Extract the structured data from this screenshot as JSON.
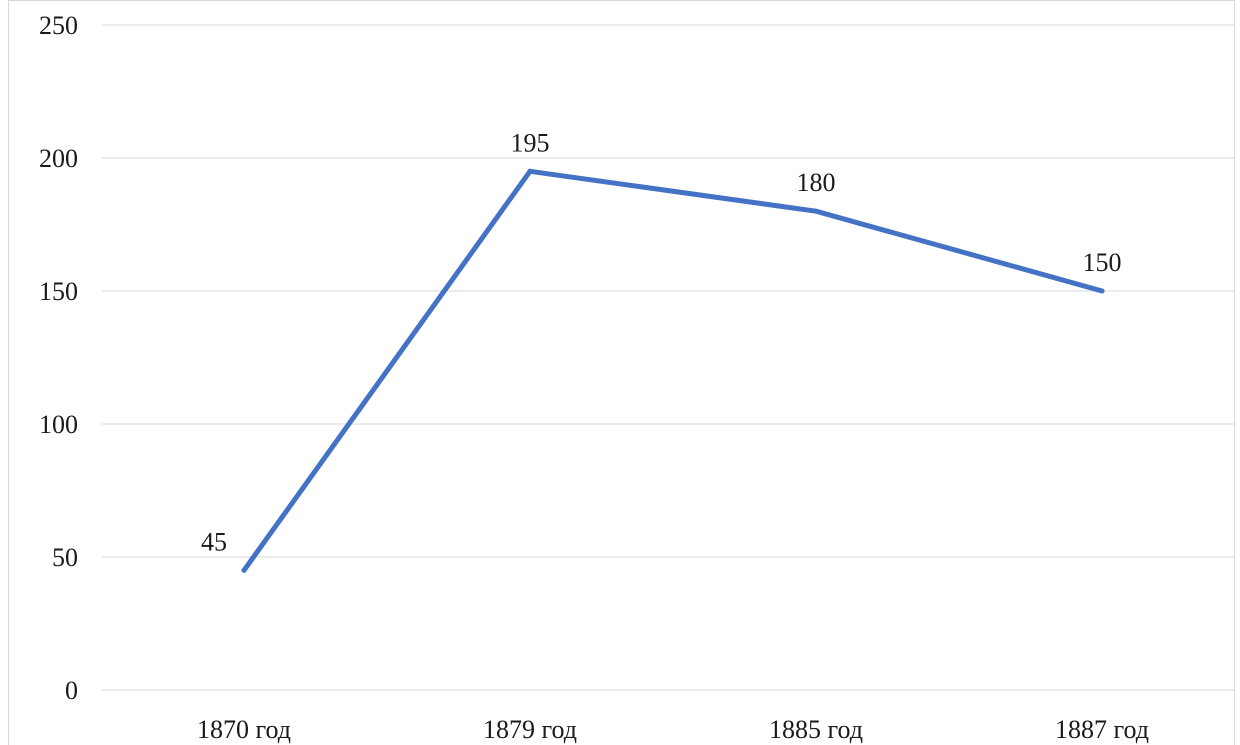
{
  "colors": {
    "series": "#4472c4",
    "grid": "#d9d9d9",
    "text": "#1a1a1a"
  },
  "chart_data": {
    "type": "line",
    "categories": [
      "1870 год",
      "1879 год",
      "1885 год",
      "1887 год"
    ],
    "series": [
      {
        "values": [
          45,
          195,
          180,
          150
        ]
      }
    ],
    "ylim": [
      0,
      250
    ],
    "yticks": [
      0,
      50,
      100,
      150,
      200,
      250
    ],
    "data_labels": true,
    "grid": true,
    "legend": "none"
  }
}
